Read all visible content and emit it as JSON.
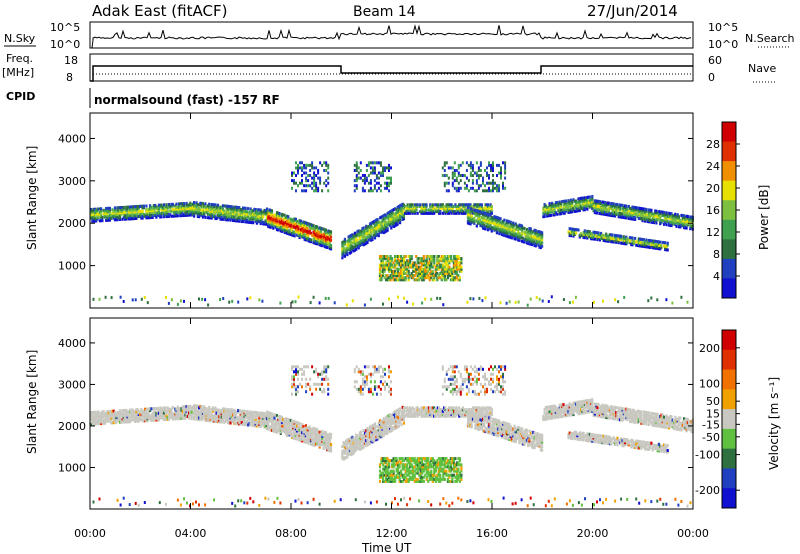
{
  "header": {
    "station": "Adak East (fitACF)",
    "beam": "Beam 14",
    "date": "27/Jun/2014"
  },
  "params": {
    "nsky_label": "N.Sky",
    "nsearch_label": "N.Search",
    "freq_label": "Freq.",
    "freq_unit": "[MHz]",
    "nave_label": "Nave",
    "cpid_label": "CPID",
    "cpid_text": "normalsound (fast) -157 RF",
    "noise_ticks": [
      "10^5",
      "10^0"
    ],
    "freq_ticks": [
      "18",
      "8"
    ],
    "nave_ticks": [
      "60",
      "0"
    ]
  },
  "colors": {
    "power_scale": [
      "#1010d0",
      "#2040c0",
      "#2e7040",
      "#3fa050",
      "#7dc040",
      "#e8e000",
      "#f09000",
      "#e03000",
      "#d00000"
    ],
    "velocity_scale": [
      "#1010d0",
      "#2040c0",
      "#2e7040",
      "#60c040",
      "#c8c8c0",
      "#f0a000",
      "#f07000",
      "#e03000",
      "#d00000"
    ],
    "ground_scatter": "#c8c8c0"
  },
  "chart_data": [
    {
      "type": "heatmap",
      "name": "power",
      "ylabel": "Slant Range [km]",
      "xlabel": "Time UT",
      "ylim": [
        0,
        4600
      ],
      "yticks": [
        "1000",
        "2000",
        "3000",
        "4000"
      ],
      "xticks": [
        "00:00",
        "04:00",
        "08:00",
        "12:00",
        "16:00",
        "20:00",
        "00:00"
      ],
      "colorbar": {
        "label": "Power [dB]",
        "ticks": [
          "4",
          "8",
          "12",
          "16",
          "20",
          "24",
          "28"
        ],
        "range": [
          0,
          32
        ]
      }
    },
    {
      "type": "heatmap",
      "name": "velocity",
      "ylabel": "Slant Range [km]",
      "xlabel": "Time UT",
      "ylim": [
        0,
        4600
      ],
      "yticks": [
        "1000",
        "2000",
        "3000",
        "4000"
      ],
      "xticks": [
        "00:00",
        "04:00",
        "08:00",
        "12:00",
        "16:00",
        "20:00",
        "00:00"
      ],
      "colorbar": {
        "label": "Velocity [m s⁻¹]",
        "ticks": [
          "-200",
          "-100",
          "-50",
          "-15",
          "15",
          "50",
          "100",
          "200"
        ],
        "range": [
          -250,
          250
        ]
      }
    }
  ]
}
